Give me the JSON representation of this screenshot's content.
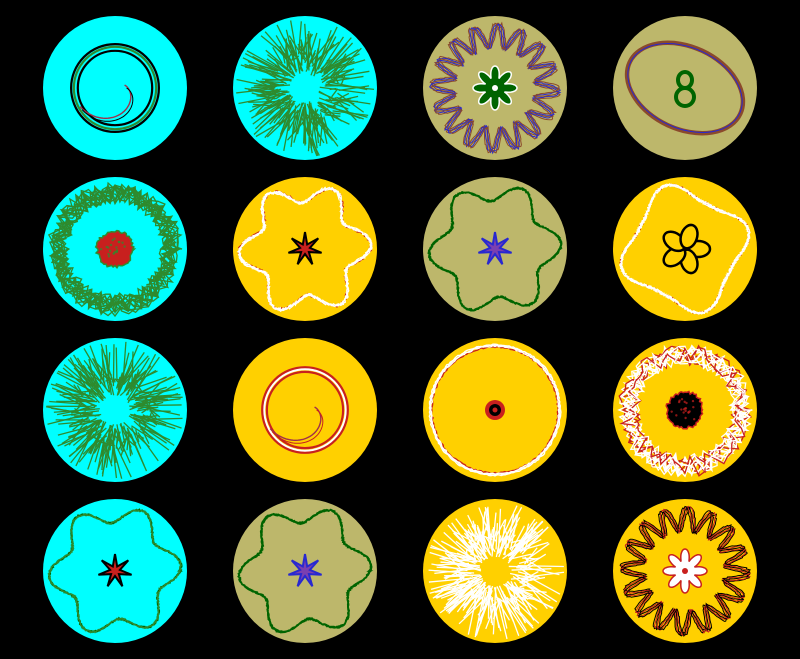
{
  "background": "#000000",
  "palette": {
    "cyan": "#00ffff",
    "yellow": "#ffd000",
    "khaki": "#bdb76b",
    "green": "#2e8b2e",
    "darkgreen": "#006400",
    "red": "#c8201e",
    "blue": "#2828d0",
    "purple": "#7b3fb0",
    "white": "#ffffff",
    "black": "#000000",
    "brown": "#8b4a2b"
  },
  "tiles": [
    {
      "bg": "cyan",
      "outer": "spiral",
      "outerColor": "green",
      "edge": "black",
      "inner": "none"
    },
    {
      "bg": "cyan",
      "outer": "burst",
      "outerColor": "green",
      "edge": "green",
      "inner": "none"
    },
    {
      "bg": "khaki",
      "outer": "zigzag",
      "outerColor": "brown",
      "edge": "blue",
      "inner": "flower",
      "innerColor": "darkgreen",
      "innerEdge": "white"
    },
    {
      "bg": "khaki",
      "outer": "ellipse",
      "outerColor": "brown",
      "edge": "blue",
      "inner": "eight",
      "innerColor": "darkgreen",
      "innerEdge": "white"
    },
    {
      "bg": "cyan",
      "outer": "rings",
      "outerColor": "green",
      "edge": "green",
      "inner": "blob",
      "innerColor": "red",
      "innerEdge": "green"
    },
    {
      "bg": "yellow",
      "outer": "hexwave",
      "outerColor": "white",
      "edge": "red",
      "inner": "star",
      "innerColor": "red",
      "innerEdge": "black"
    },
    {
      "bg": "khaki",
      "outer": "flower6",
      "outerColor": "darkgreen",
      "edge": "darkgreen",
      "inner": "star",
      "innerColor": "purple",
      "innerEdge": "blue"
    },
    {
      "bg": "yellow",
      "outer": "square",
      "outerColor": "white",
      "edge": "red",
      "inner": "petals",
      "innerColor": "yellow",
      "innerEdge": "black"
    },
    {
      "bg": "cyan",
      "outer": "burst",
      "outerColor": "green",
      "edge": "green",
      "inner": "none"
    },
    {
      "bg": "yellow",
      "outer": "spiral",
      "outerColor": "white",
      "edge": "red",
      "inner": "none"
    },
    {
      "bg": "yellow",
      "outer": "circle",
      "outerColor": "white",
      "edge": "red",
      "inner": "dot",
      "innerColor": "black",
      "innerEdge": "red"
    },
    {
      "bg": "yellow",
      "outer": "rings",
      "outerColor": "white",
      "edge": "red",
      "inner": "blob",
      "innerColor": "black",
      "innerEdge": "red"
    },
    {
      "bg": "cyan",
      "outer": "flower6",
      "outerColor": "green",
      "edge": "darkgreen",
      "inner": "star",
      "innerColor": "red",
      "innerEdge": "black"
    },
    {
      "bg": "khaki",
      "outer": "flower6",
      "outerColor": "darkgreen",
      "edge": "darkgreen",
      "inner": "star",
      "innerColor": "purple",
      "innerEdge": "blue"
    },
    {
      "bg": "yellow",
      "outer": "burst",
      "outerColor": "white",
      "edge": "white",
      "inner": "none"
    },
    {
      "bg": "yellow",
      "outer": "zigzag",
      "outerColor": "black",
      "edge": "red",
      "inner": "flower",
      "innerColor": "white",
      "innerEdge": "red"
    }
  ]
}
